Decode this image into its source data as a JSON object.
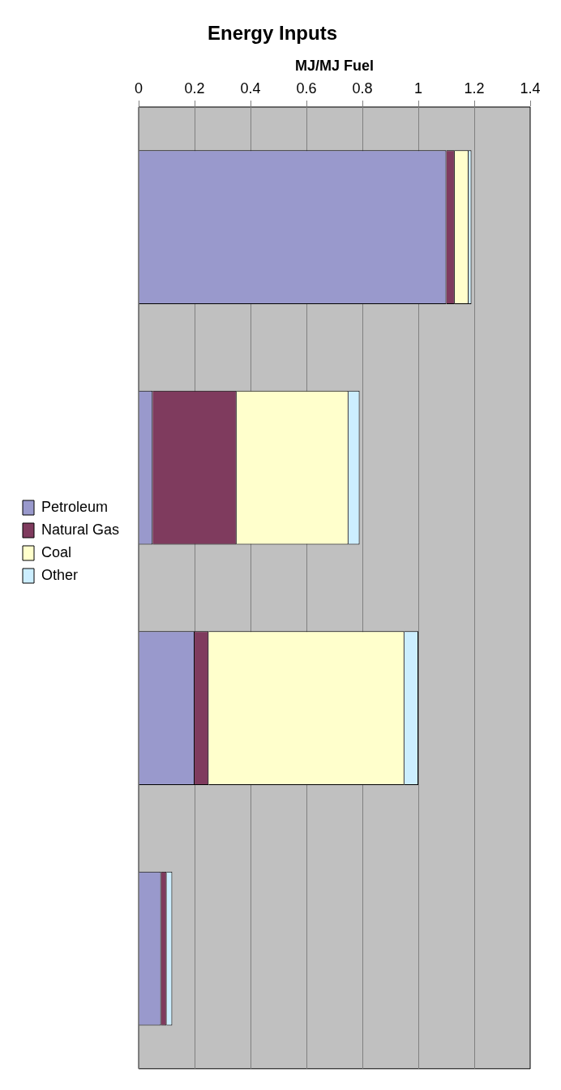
{
  "chart_data": {
    "type": "bar",
    "orientation": "horizontal",
    "stacked": true,
    "title": "Energy Inputs",
    "xlabel": "MJ/MJ Fuel",
    "categories": [
      null,
      null,
      null,
      null
    ],
    "series": [
      {
        "name": "Petroleum",
        "color": "#9999cc",
        "values": [
          1.1,
          0.05,
          0.2,
          0.08
        ]
      },
      {
        "name": "Natural Gas",
        "color": "#7f3b5e",
        "values": [
          0.03,
          0.3,
          0.05,
          0.02
        ]
      },
      {
        "name": "Coal",
        "color": "#ffffcc",
        "values": [
          0.05,
          0.4,
          0.7,
          0.0
        ]
      },
      {
        "name": "Other",
        "color": "#cceeff",
        "values": [
          0.01,
          0.04,
          0.05,
          0.02
        ]
      }
    ],
    "xlim": [
      0,
      1.4
    ],
    "xticks": [
      0,
      0.2,
      0.4,
      0.6,
      0.8,
      1,
      1.2,
      1.4
    ],
    "grid": "x",
    "legend": "left"
  }
}
